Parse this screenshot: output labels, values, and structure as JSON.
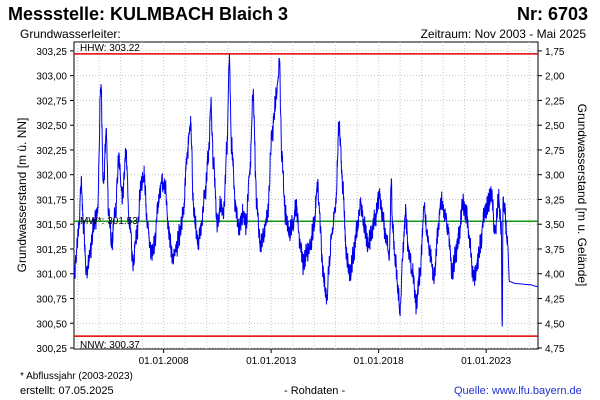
{
  "header": {
    "title": "Messstelle: KULMBACH Blaich 3",
    "station_nr": "Nr: 6703",
    "aquifer_label": "Grundwasserleiter:",
    "period": "Zeitraum: Nov 2003 - Mai 2025"
  },
  "footer": {
    "footnote": "* Abflussjahr (2003-2023)",
    "created": "erstellt:  07.05.2025",
    "raw_data": "- Rohdaten -",
    "source": "Quelle: www.lfu.bayern.de"
  },
  "chart_data": {
    "type": "line",
    "xlabel": "",
    "ylabel": "Grundwasserstand [m ü. NN]",
    "ylabel_right": "Grundwasserstand [m u. Gelände]",
    "x_range": [
      "2003-11-01",
      "2025-05-31"
    ],
    "ylim": [
      300.24,
      303.34
    ],
    "ylim_right_inverted": [
      1.63,
      4.73
    ],
    "ground_level": 305.0,
    "x_ticks": [
      "01.01.2008",
      "01.01.2013",
      "01.01.2018",
      "01.01.2023"
    ],
    "y_ticks": [
      "300,25",
      "300,50",
      "300,75",
      "301,00",
      "301,25",
      "301,50",
      "301,75",
      "302,00",
      "302,25",
      "302,50",
      "302,75",
      "303,00",
      "303,25"
    ],
    "y_ticks_right": [
      "1,75",
      "2,00",
      "2,25",
      "2,50",
      "2,75",
      "3,00",
      "3,25",
      "3,50",
      "3,75",
      "4,00",
      "4,25",
      "4,50",
      "4,75"
    ],
    "grid": true,
    "reference_lines": [
      {
        "label": "HHW: 303.22",
        "value": 303.22,
        "color": "#e00000"
      },
      {
        "label": "MW*: 301.53",
        "value": 301.53,
        "color": "#119911"
      },
      {
        "label": "NNW: 300.37",
        "value": 300.37,
        "color": "#e00000"
      }
    ],
    "series": [
      {
        "color": "#0000ee",
        "points": [
          [
            "2003-11-01",
            300.97
          ],
          [
            "2004-01-15",
            301.4
          ],
          [
            "2004-03-01",
            301.9
          ],
          [
            "2004-04-15",
            301.45
          ],
          [
            "2004-06-01",
            301.0
          ],
          [
            "2004-08-01",
            301.2
          ],
          [
            "2004-10-01",
            301.5
          ],
          [
            "2004-12-01",
            301.6
          ],
          [
            "2005-02-01",
            302.9
          ],
          [
            "2005-03-15",
            301.9
          ],
          [
            "2005-05-01",
            302.4
          ],
          [
            "2005-06-15",
            301.6
          ],
          [
            "2005-08-01",
            301.3
          ],
          [
            "2005-10-01",
            301.6
          ],
          [
            "2005-12-01",
            302.15
          ],
          [
            "2006-02-01",
            301.8
          ],
          [
            "2006-04-01",
            302.2
          ],
          [
            "2006-06-01",
            301.5
          ],
          [
            "2006-08-01",
            301.1
          ],
          [
            "2006-10-01",
            301.4
          ],
          [
            "2006-12-15",
            301.9
          ],
          [
            "2007-02-01",
            302.0
          ],
          [
            "2007-04-01",
            301.5
          ],
          [
            "2007-06-01",
            301.2
          ],
          [
            "2007-08-01",
            301.3
          ],
          [
            "2007-10-01",
            301.7
          ],
          [
            "2007-12-01",
            301.95
          ],
          [
            "2008-02-01",
            301.85
          ],
          [
            "2008-04-01",
            301.4
          ],
          [
            "2008-06-01",
            301.15
          ],
          [
            "2008-08-01",
            301.25
          ],
          [
            "2008-10-01",
            301.4
          ],
          [
            "2008-12-01",
            301.6
          ],
          [
            "2009-02-01",
            302.2
          ],
          [
            "2009-04-01",
            302.5
          ],
          [
            "2009-06-01",
            301.6
          ],
          [
            "2009-08-01",
            301.3
          ],
          [
            "2009-10-01",
            301.5
          ],
          [
            "2009-12-01",
            301.8
          ],
          [
            "2010-02-01",
            302.2
          ],
          [
            "2010-03-15",
            302.7
          ],
          [
            "2010-05-01",
            302.1
          ],
          [
            "2010-07-01",
            301.5
          ],
          [
            "2010-09-01",
            301.7
          ],
          [
            "2010-10-15",
            301.6
          ],
          [
            "2010-12-15",
            302.3
          ],
          [
            "2011-01-20",
            303.2
          ],
          [
            "2011-03-01",
            302.3
          ],
          [
            "2011-05-01",
            301.7
          ],
          [
            "2011-07-01",
            301.45
          ],
          [
            "2011-09-01",
            301.6
          ],
          [
            "2011-11-01",
            301.5
          ],
          [
            "2012-01-01",
            302.0
          ],
          [
            "2012-03-01",
            302.8
          ],
          [
            "2012-05-01",
            301.7
          ],
          [
            "2012-07-01",
            301.3
          ],
          [
            "2012-09-01",
            301.4
          ],
          [
            "2012-11-01",
            301.6
          ],
          [
            "2013-01-15",
            302.4
          ],
          [
            "2013-04-01",
            302.8
          ],
          [
            "2013-05-20",
            303.15
          ],
          [
            "2013-07-01",
            302.2
          ],
          [
            "2013-09-01",
            301.6
          ],
          [
            "2013-11-01",
            301.4
          ],
          [
            "2014-01-01",
            301.5
          ],
          [
            "2014-03-01",
            301.7
          ],
          [
            "2014-05-01",
            301.35
          ],
          [
            "2014-07-01",
            301.1
          ],
          [
            "2014-09-01",
            301.2
          ],
          [
            "2014-11-01",
            301.3
          ],
          [
            "2015-01-01",
            301.5
          ],
          [
            "2015-03-01",
            301.9
          ],
          [
            "2015-04-01",
            301.6
          ],
          [
            "2015-06-01",
            301.0
          ],
          [
            "2015-08-01",
            300.75
          ],
          [
            "2015-09-15",
            301.1
          ],
          [
            "2015-11-01",
            301.4
          ],
          [
            "2016-01-01",
            301.7
          ],
          [
            "2016-03-01",
            302.5
          ],
          [
            "2016-05-01",
            301.9
          ],
          [
            "2016-07-01",
            301.2
          ],
          [
            "2016-09-01",
            301.0
          ],
          [
            "2016-11-01",
            301.2
          ],
          [
            "2017-01-01",
            301.45
          ],
          [
            "2017-03-01",
            301.7
          ],
          [
            "2017-05-01",
            301.5
          ],
          [
            "2017-07-01",
            301.3
          ],
          [
            "2017-09-01",
            301.4
          ],
          [
            "2017-11-01",
            301.55
          ],
          [
            "2018-01-15",
            301.8
          ],
          [
            "2018-03-01",
            301.6
          ],
          [
            "2018-05-01",
            301.4
          ],
          [
            "2018-07-01",
            301.2
          ],
          [
            "2018-08-01",
            301.9
          ],
          [
            "2018-09-01",
            301.4
          ],
          [
            "2018-10-15",
            301.1
          ],
          [
            "2018-12-01",
            300.8
          ],
          [
            "2019-01-01",
            300.6
          ],
          [
            "2019-02-15",
            301.2
          ],
          [
            "2019-04-01",
            301.6
          ],
          [
            "2019-06-01",
            301.2
          ],
          [
            "2019-08-01",
            301.0
          ],
          [
            "2019-10-01",
            300.7
          ],
          [
            "2019-12-01",
            301.0
          ],
          [
            "2020-02-15",
            301.65
          ],
          [
            "2020-04-01",
            301.4
          ],
          [
            "2020-06-01",
            301.2
          ],
          [
            "2020-08-01",
            300.95
          ],
          [
            "2020-10-01",
            301.4
          ],
          [
            "2020-12-01",
            301.75
          ],
          [
            "2021-02-01",
            301.6
          ],
          [
            "2021-04-01",
            301.4
          ],
          [
            "2021-06-01",
            301.0
          ],
          [
            "2021-08-01",
            301.2
          ],
          [
            "2021-10-01",
            301.4
          ],
          [
            "2021-12-01",
            301.7
          ],
          [
            "2022-02-01",
            301.6
          ],
          [
            "2022-04-01",
            301.3
          ],
          [
            "2022-06-01",
            300.95
          ],
          [
            "2022-08-01",
            301.1
          ],
          [
            "2022-10-01",
            301.3
          ],
          [
            "2022-12-01",
            301.6
          ],
          [
            "2023-02-01",
            301.7
          ],
          [
            "2023-04-01",
            301.8
          ],
          [
            "2023-06-01",
            301.4
          ],
          [
            "2023-08-01",
            301.75
          ],
          [
            "2023-09-15",
            301.45
          ],
          [
            "2023-10-01",
            300.4
          ],
          [
            "2023-10-15",
            301.7
          ],
          [
            "2023-11-15",
            301.6
          ],
          [
            "2024-01-01",
            301.3
          ],
          [
            "2024-02-01",
            300.92
          ],
          [
            "2024-06-01",
            300.9
          ],
          [
            "2025-01-01",
            300.89
          ],
          [
            "2025-05-31",
            300.87
          ]
        ]
      }
    ]
  }
}
